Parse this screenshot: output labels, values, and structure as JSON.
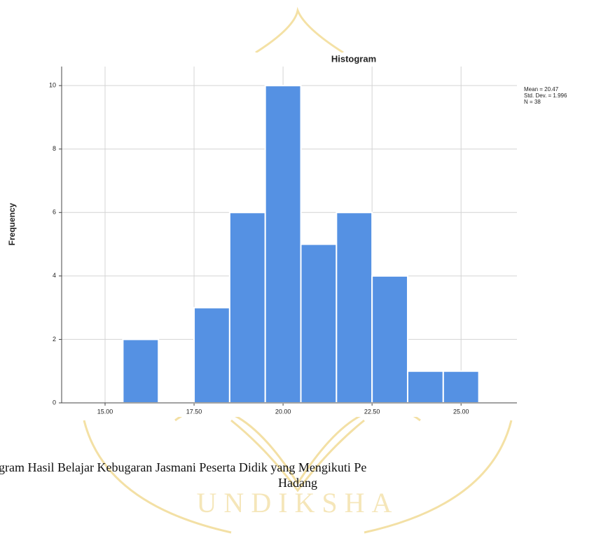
{
  "chart_data": {
    "type": "histogram",
    "title": "Histogram",
    "y_label": "Frequency",
    "bins": [
      15.5,
      16.5,
      17.5,
      18.5,
      19.5,
      20.5,
      21.5,
      22.5,
      23.5,
      24.5,
      25.5
    ],
    "counts": [
      2,
      0,
      3,
      6,
      10,
      5,
      6,
      4,
      1,
      1
    ],
    "color": "#5591e3",
    "xlim": [
      13.78,
      26.57
    ],
    "xticks": [
      {
        "value": 15,
        "label": "15.00"
      },
      {
        "value": 17.5,
        "label": "17.50"
      },
      {
        "value": 20,
        "label": "20.00"
      },
      {
        "value": 22.5,
        "label": "22.50"
      },
      {
        "value": 25,
        "label": "25.00"
      }
    ],
    "ylim": [
      0,
      10.6
    ],
    "yticks": [
      0,
      2,
      4,
      6,
      8,
      10
    ],
    "grid": true,
    "annotations": [
      "Mean = 20.47",
      "Std. Dev. = 1.996",
      "N = 38"
    ]
  },
  "caption": [
    "gram Hasil Belajar Kebugaran Jasmani Peserta Didik yang Mengikuti Pe",
    "Hadang"
  ],
  "watermark": "UNDIKSHA"
}
